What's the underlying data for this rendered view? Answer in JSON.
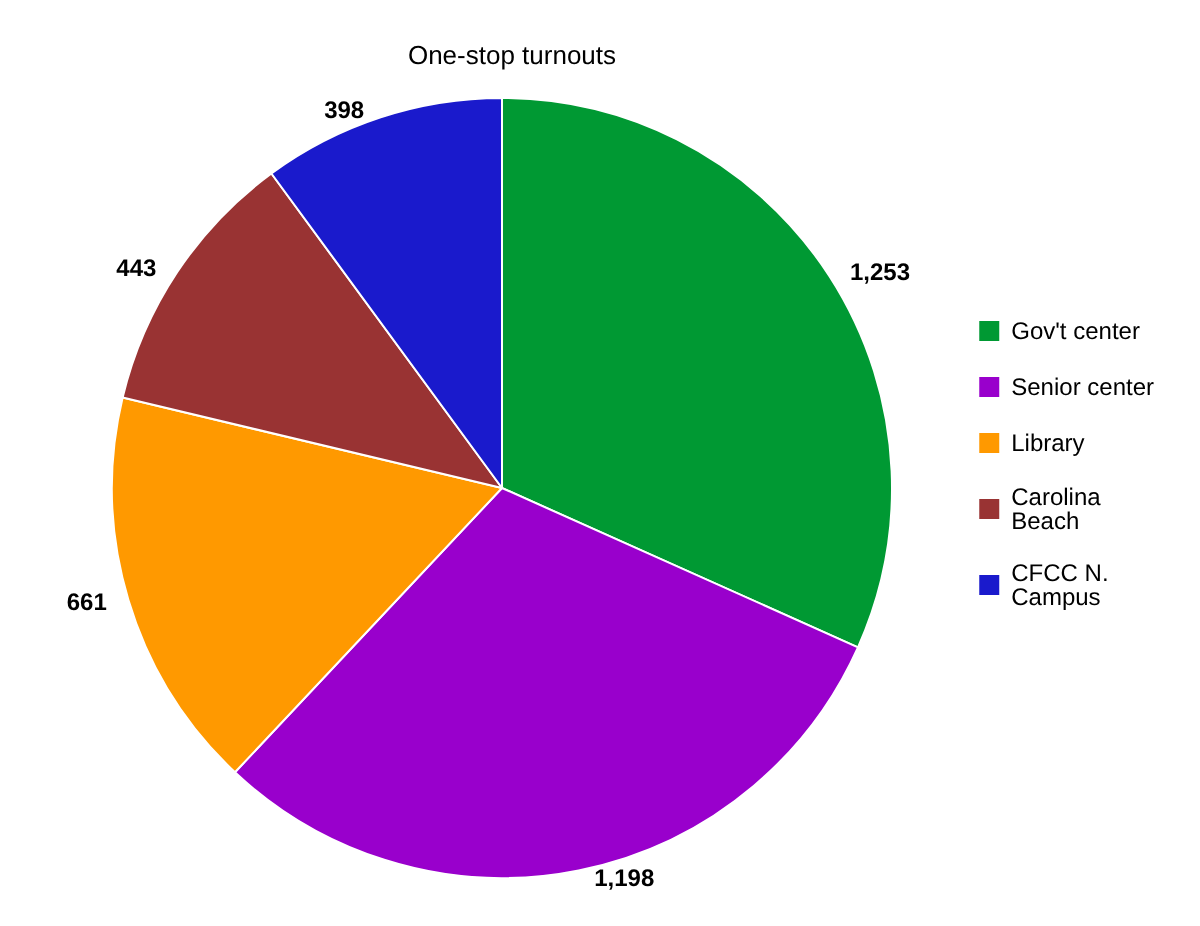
{
  "chart_data": {
    "type": "pie",
    "title": "One-stop turnouts",
    "categories": [
      "Gov't center",
      "Senior center",
      "Library",
      "Carolina Beach",
      "CFCC N. Campus"
    ],
    "values": [
      1253,
      1198,
      661,
      443,
      398
    ],
    "colors": [
      "#009933",
      "#9900cc",
      "#ff9900",
      "#993333",
      "#1a1acc"
    ],
    "value_labels": [
      "1,253",
      "1,198",
      "661",
      "443",
      "398"
    ],
    "legend": "right"
  }
}
